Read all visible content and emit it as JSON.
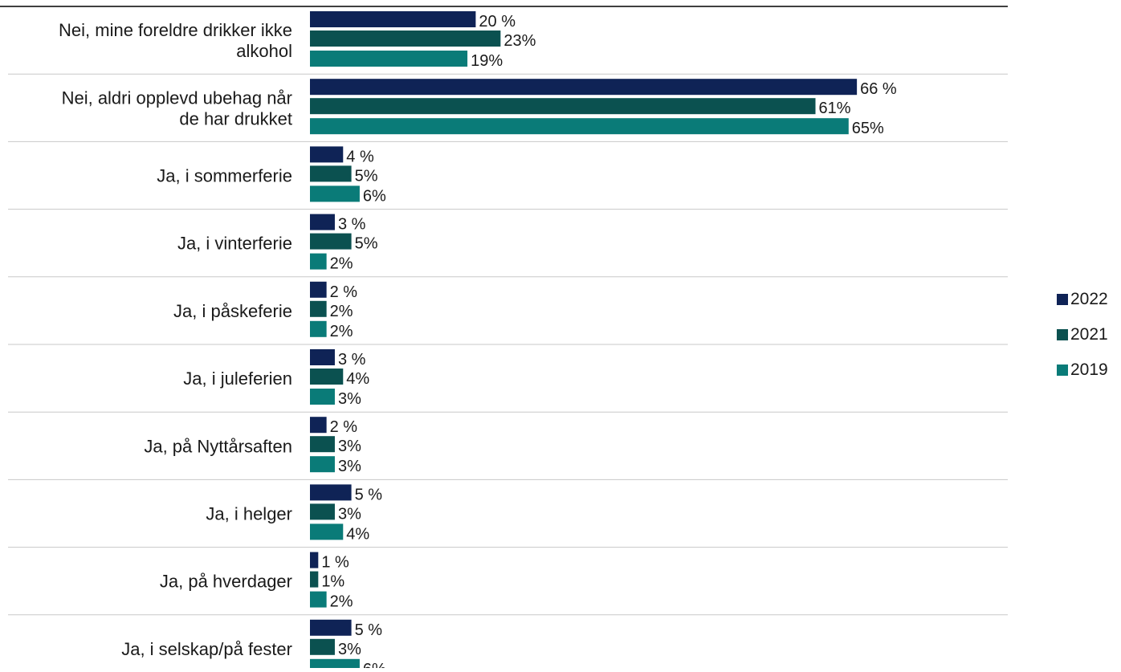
{
  "chart_data": {
    "type": "bar",
    "orientation": "horizontal",
    "categories": [
      [
        "Nei, mine foreldre drikker ikke",
        "alkohol"
      ],
      [
        "Nei, aldri opplevd ubehag når",
        "de har drukket"
      ],
      [
        "Ja, i sommerferie"
      ],
      [
        "Ja, i vinterferie"
      ],
      [
        "Ja, i påskeferie"
      ],
      [
        "Ja, i juleferien"
      ],
      [
        "Ja, på Nyttårsaften"
      ],
      [
        "Ja, i helger"
      ],
      [
        "Ja, på hverdager"
      ],
      [
        "Ja, i selskap/på fester"
      ]
    ],
    "series": [
      {
        "name": "2022",
        "color": "#0f2356",
        "values": [
          20,
          66,
          4,
          3,
          2,
          3,
          2,
          5,
          1,
          5
        ],
        "labels": [
          "20 %",
          "66 %",
          "4 %",
          "3 %",
          "2 %",
          "3 %",
          "2 %",
          "5 %",
          "1 %",
          "5 %"
        ]
      },
      {
        "name": "2021",
        "color": "#0b5150",
        "values": [
          23,
          61,
          5,
          5,
          2,
          4,
          3,
          3,
          1,
          3
        ],
        "labels": [
          "23%",
          "61%",
          "5%",
          "5%",
          "2%",
          "4%",
          "3%",
          "3%",
          "1%",
          "3%"
        ]
      },
      {
        "name": "2019",
        "color": "#0a7b78",
        "values": [
          19,
          65,
          6,
          2,
          2,
          3,
          3,
          4,
          2,
          6
        ],
        "labels": [
          "19%",
          "65%",
          "6%",
          "2%",
          "2%",
          "3%",
          "3%",
          "4%",
          "2%",
          "6%"
        ]
      }
    ],
    "xlim": [
      0,
      100
    ],
    "legend": {
      "position": "right"
    },
    "grid": "horizontal separators between categories"
  }
}
